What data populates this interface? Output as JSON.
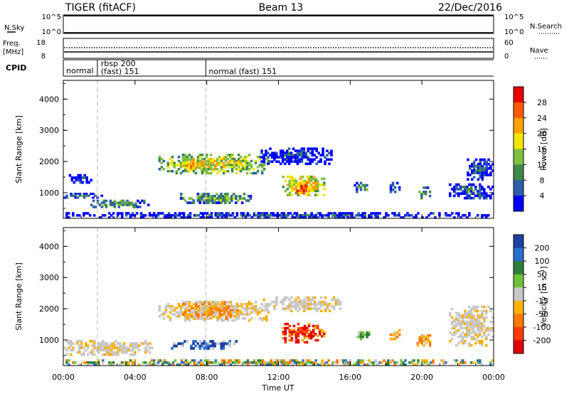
{
  "header": {
    "radar": "TIGER (fitACF)",
    "beam": "Beam 13",
    "date": "22/Dec/2016"
  },
  "nsky_panel": {
    "left_label": "N.Sky",
    "left_ticks": [
      "10^5",
      "10^0"
    ],
    "right_label": "N.Search",
    "right_ticks": [
      "10^5",
      "10^0"
    ]
  },
  "freq_panel": {
    "left_label_1": "Freq.",
    "left_label_2": "[MHz]",
    "left_ticks": [
      "18",
      "8"
    ],
    "right_label": "Nave",
    "right_ticks": [
      "60",
      "0"
    ]
  },
  "cpid_panel": {
    "label": "CPID",
    "segments": [
      {
        "text": "normal",
        "start_hour": 0
      },
      {
        "text": "rbsp 200",
        "start_hour": 1.9
      },
      {
        "text": "(fast) 151",
        "start_hour": 1.9
      },
      {
        "text": "normal (fast) 151",
        "start_hour": 7.95
      }
    ]
  },
  "mode_change_hours": [
    1.9,
    7.95
  ],
  "time_axis": {
    "label": "Time UT",
    "ticks": [
      "00:00",
      "04:00",
      "08:00",
      "12:00",
      "16:00",
      "20:00",
      "00:00"
    ],
    "range_hours": [
      0,
      24
    ]
  },
  "colors": {
    "power_scale": [
      "#0000ff",
      "#2c5fa8",
      "#3f8a4a",
      "#7fbf3f",
      "#f2e600",
      "#ffa200",
      "#ff5a00",
      "#e60000"
    ],
    "velocity_scale": [
      "#1f3fa0",
      "#2a6fd0",
      "#2e7d3a",
      "#6cc23a",
      "#c8c8c8",
      "#ffb000",
      "#ff7a00",
      "#ff3a00",
      "#e00000"
    ],
    "ground_scatter": "#c8c8c8"
  },
  "chart_data": [
    {
      "type": "heatmap",
      "quantity": "Power",
      "ylabel": "Slant Range [km]",
      "xlabel": "Time UT",
      "yticks": [
        "1000",
        "2000",
        "3000",
        "4000"
      ],
      "ylim_km": [
        180,
        4600
      ],
      "colorbar": {
        "label": "Power [dB]",
        "ticks": [
          "4",
          "8",
          "12",
          "16",
          "20",
          "24",
          "28"
        ],
        "range": [
          0,
          32
        ]
      },
      "echo_regions": [
        {
          "t_start": 0.0,
          "t_end": 24.0,
          "r_min": 180,
          "r_max": 380,
          "level": 0.2
        },
        {
          "t_start": 0.0,
          "t_end": 2.2,
          "r_min": 820,
          "r_max": 1000,
          "level": 0.25
        },
        {
          "t_start": 1.5,
          "t_end": 4.8,
          "r_min": 520,
          "r_max": 780,
          "level": 0.4
        },
        {
          "t_start": 0.3,
          "t_end": 1.6,
          "r_min": 1300,
          "r_max": 1600,
          "level": 0.2
        },
        {
          "t_start": 5.3,
          "t_end": 11.5,
          "r_min": 1600,
          "r_max": 2250,
          "level": 0.6
        },
        {
          "t_start": 6.5,
          "t_end": 8.0,
          "r_min": 1700,
          "r_max": 2100,
          "level": 0.75
        },
        {
          "t_start": 6.5,
          "t_end": 10.5,
          "r_min": 650,
          "r_max": 1000,
          "level": 0.45
        },
        {
          "t_start": 12.2,
          "t_end": 14.6,
          "r_min": 900,
          "r_max": 1550,
          "level": 0.7
        },
        {
          "t_start": 13.0,
          "t_end": 13.7,
          "r_min": 950,
          "r_max": 1250,
          "level": 0.95
        },
        {
          "t_start": 11.0,
          "t_end": 15.0,
          "r_min": 1900,
          "r_max": 2450,
          "level": 0.2
        },
        {
          "t_start": 16.2,
          "t_end": 17.1,
          "r_min": 1000,
          "r_max": 1350,
          "level": 0.4
        },
        {
          "t_start": 18.2,
          "t_end": 18.8,
          "r_min": 1000,
          "r_max": 1350,
          "level": 0.3
        },
        {
          "t_start": 19.8,
          "t_end": 20.5,
          "r_min": 800,
          "r_max": 1200,
          "level": 0.4
        },
        {
          "t_start": 21.5,
          "t_end": 24.0,
          "r_min": 800,
          "r_max": 1300,
          "level": 0.25
        },
        {
          "t_start": 22.5,
          "t_end": 24.0,
          "r_min": 1400,
          "r_max": 2100,
          "level": 0.25
        }
      ]
    },
    {
      "type": "heatmap",
      "quantity": "Velocity",
      "ylabel": "Slant Range [km]",
      "xlabel": "Time UT",
      "yticks": [
        "1000",
        "2000",
        "3000",
        "4000"
      ],
      "ylim_km": [
        180,
        4600
      ],
      "colorbar": {
        "label": "Velocity [m s⁻¹]",
        "ticks": [
          "200",
          "100",
          "50",
          "15",
          "-15",
          "-50",
          "-100",
          "-200"
        ]
      },
      "echo_regions": [
        {
          "t_start": 0.0,
          "t_end": 24.0,
          "r_min": 180,
          "r_max": 380,
          "class": "mixed"
        },
        {
          "t_start": 0.0,
          "t_end": 5.0,
          "r_min": 500,
          "r_max": 1000,
          "class": "ground"
        },
        {
          "t_start": 5.3,
          "t_end": 11.5,
          "r_min": 1600,
          "r_max": 2250,
          "class": "ground"
        },
        {
          "t_start": 6.5,
          "t_end": 10.0,
          "r_min": 1650,
          "r_max": 2250,
          "class": "orange"
        },
        {
          "t_start": 6.0,
          "t_end": 9.7,
          "r_min": 700,
          "r_max": 1000,
          "class": "blue"
        },
        {
          "t_start": 12.2,
          "t_end": 14.6,
          "r_min": 900,
          "r_max": 1550,
          "class": "red"
        },
        {
          "t_start": 11.0,
          "t_end": 15.5,
          "r_min": 1900,
          "r_max": 2400,
          "class": "ground"
        },
        {
          "t_start": 16.2,
          "t_end": 17.1,
          "r_min": 1000,
          "r_max": 1350,
          "class": "green"
        },
        {
          "t_start": 18.2,
          "t_end": 18.8,
          "r_min": 1000,
          "r_max": 1350,
          "class": "orange"
        },
        {
          "t_start": 19.7,
          "t_end": 20.5,
          "r_min": 800,
          "r_max": 1250,
          "class": "orange"
        },
        {
          "t_start": 21.5,
          "t_end": 24.0,
          "r_min": 800,
          "r_max": 2100,
          "class": "ground"
        }
      ]
    }
  ]
}
